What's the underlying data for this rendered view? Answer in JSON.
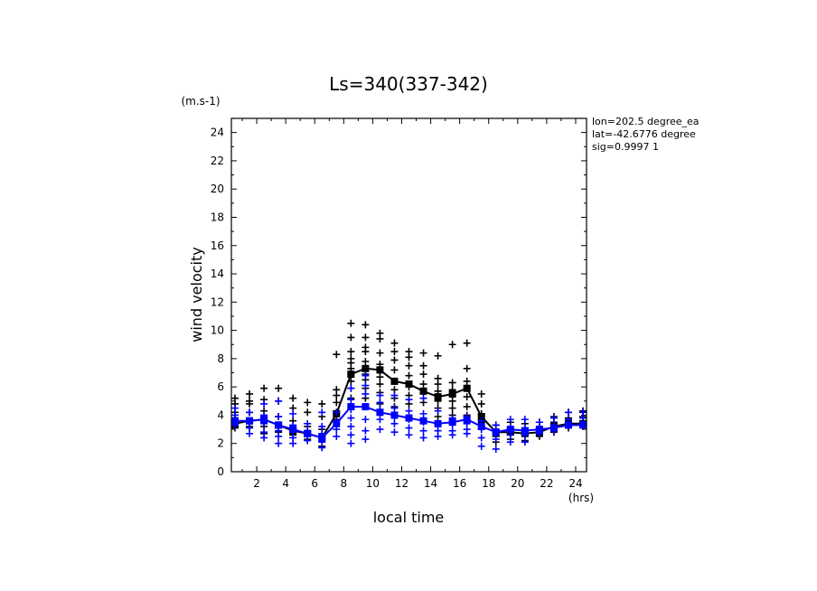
{
  "chart_data": {
    "type": "scatter",
    "title": "Ls=340(337-342)",
    "xlabel": "local time",
    "ylabel": "wind velocity",
    "x_unit": "(hrs)",
    "y_unit": "(m.s-1)",
    "xlim": [
      0.25,
      24.75
    ],
    "ylim": [
      0,
      25
    ],
    "xticks": [
      2,
      4,
      6,
      8,
      10,
      12,
      14,
      16,
      18,
      20,
      22,
      24
    ],
    "yticks": [
      0,
      2,
      4,
      6,
      8,
      10,
      12,
      14,
      16,
      18,
      20,
      22,
      24
    ],
    "annotations": [
      "lon=202.5 degree_ea",
      "lat=-42.6776 degree",
      "sig=0.9997 1"
    ],
    "series": [
      {
        "color": "#000000",
        "x": [
          0.5,
          1.5,
          2.5,
          3.5,
          4.5,
          5.5,
          6.5,
          7.5,
          8.5,
          9.5,
          10.5,
          11.5,
          12.5,
          13.5,
          14.5,
          15.5,
          16.5,
          17.5,
          18.5,
          19.5,
          20.5,
          21.5,
          22.5,
          23.5,
          24.5
        ],
        "scatter": [
          [
            4.2,
            3.8,
            3.5,
            3.3,
            4.8,
            5.2,
            3.1
          ],
          [
            5.5,
            4.8,
            4.2,
            3.6,
            3.2,
            5.0
          ],
          [
            5.9,
            5.1,
            4.3,
            3.7,
            3.2,
            2.7
          ],
          [
            5.9,
            5.0,
            3.9,
            3.2,
            2.8
          ],
          [
            5.2,
            4.5,
            3.6,
            3.0,
            2.6
          ],
          [
            4.9,
            4.2,
            3.2,
            2.7,
            2.3
          ],
          [
            4.8,
            3.9,
            3.0,
            2.4,
            1.8
          ],
          [
            8.3,
            5.8,
            5.4,
            4.9,
            4.2,
            3.7
          ],
          [
            10.5,
            9.5,
            8.5,
            8.0,
            7.7,
            7.3,
            6.9,
            6.4,
            5.9,
            5.2
          ],
          [
            10.4,
            9.5,
            8.8,
            8.5,
            7.8,
            7.3,
            6.9,
            6.5,
            5.9,
            5.2
          ],
          [
            9.8,
            9.4,
            8.4,
            7.6,
            6.7,
            6.2,
            5.6,
            4.8
          ],
          [
            9.1,
            8.5,
            7.9,
            7.2,
            6.4,
            5.8,
            5.2,
            4.6
          ],
          [
            8.5,
            8.1,
            7.5,
            6.8,
            6.0,
            5.4,
            4.8
          ],
          [
            8.4,
            7.5,
            6.9,
            6.2,
            5.6,
            4.9
          ],
          [
            8.2,
            6.6,
            6.2,
            5.7,
            5.0,
            4.5,
            3.9
          ],
          [
            9.0,
            6.3,
            5.8,
            5.4,
            5.0,
            4.5,
            4.0
          ],
          [
            9.1,
            7.3,
            6.4,
            5.9,
            5.3,
            4.6,
            4.0
          ],
          [
            5.5,
            4.8,
            4.1,
            3.5,
            3.0
          ],
          [
            3.3,
            2.9,
            2.5,
            2.1
          ],
          [
            3.5,
            3.0,
            2.7,
            2.3
          ],
          [
            3.4,
            3.0,
            2.6,
            2.2
          ],
          [
            3.5,
            3.1,
            2.8,
            2.5
          ],
          [
            3.9,
            3.5,
            3.1,
            2.8
          ],
          [
            4.2,
            3.8,
            3.4,
            3.1
          ],
          [
            4.3,
            3.9,
            3.5,
            3.2
          ]
        ],
        "mean": [
          3.4,
          3.6,
          3.7,
          3.3,
          2.9,
          2.7,
          2.4,
          4.1,
          6.9,
          7.3,
          7.2,
          6.4,
          6.2,
          5.7,
          5.3,
          5.5,
          5.9,
          3.9,
          2.8,
          2.8,
          2.7,
          2.8,
          3.2,
          3.4,
          3.4
        ]
      },
      {
        "color": "#0000ff",
        "x": [
          0.5,
          1.5,
          2.5,
          3.5,
          4.5,
          5.5,
          6.5,
          7.5,
          8.5,
          9.5,
          10.5,
          11.5,
          12.5,
          13.5,
          14.5,
          15.5,
          16.5,
          17.5,
          18.5,
          19.5,
          20.5,
          21.5,
          22.5,
          23.5,
          24.5
        ],
        "scatter": [
          [
            4.5,
            4.0,
            3.6,
            3.3
          ],
          [
            4.2,
            3.6,
            3.1,
            2.7
          ],
          [
            4.8,
            4.0,
            3.4,
            2.8,
            2.4
          ],
          [
            5.0,
            3.9,
            2.9,
            2.5,
            2.0
          ],
          [
            4.1,
            3.3,
            2.8,
            2.4,
            2.0
          ],
          [
            3.4,
            2.9,
            2.5,
            2.2
          ],
          [
            4.2,
            3.2,
            2.7,
            2.1,
            1.7
          ],
          [
            4.2,
            3.6,
            3.0,
            2.5
          ],
          [
            5.9,
            5.1,
            4.4,
            3.8,
            3.2,
            2.6,
            2.0
          ],
          [
            6.8,
            6.1,
            5.5,
            4.6,
            3.7,
            2.9,
            2.3
          ],
          [
            5.4,
            4.9,
            4.4,
            3.7,
            3.0
          ],
          [
            5.4,
            4.5,
            3.9,
            3.4,
            2.8
          ],
          [
            5.1,
            4.3,
            3.7,
            3.1,
            2.6
          ],
          [
            5.2,
            4.1,
            3.5,
            2.9,
            2.4
          ],
          [
            4.3,
            3.4,
            2.9,
            2.5
          ],
          [
            3.8,
            3.4,
            2.9,
            2.6
          ],
          [
            3.9,
            3.4,
            3.0,
            2.7
          ],
          [
            3.6,
            3.0,
            2.4,
            1.8
          ],
          [
            3.3,
            2.8,
            2.3,
            1.6
          ],
          [
            3.7,
            3.1,
            2.6,
            2.1
          ],
          [
            3.7,
            3.1,
            2.6,
            2.1
          ],
          [
            3.5,
            3.0,
            2.7
          ],
          [
            3.8,
            3.3,
            2.9
          ],
          [
            4.2,
            3.7,
            3.3
          ],
          [
            4.2,
            3.8,
            3.3
          ]
        ],
        "mean": [
          3.6,
          3.6,
          3.7,
          3.3,
          3.0,
          2.7,
          2.4,
          3.4,
          4.6,
          4.6,
          4.2,
          4.0,
          3.8,
          3.6,
          3.4,
          3.5,
          3.7,
          3.2,
          2.8,
          3.0,
          2.9,
          3.0,
          3.1,
          3.3,
          3.3
        ]
      }
    ]
  }
}
